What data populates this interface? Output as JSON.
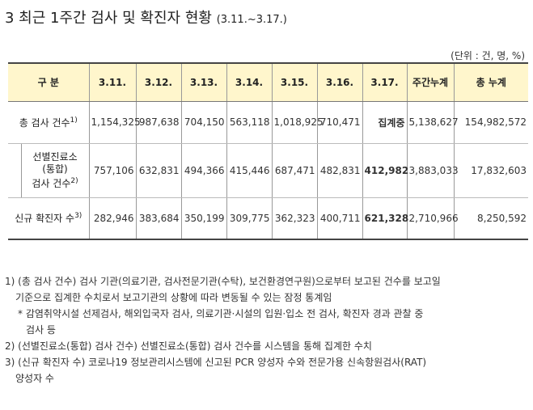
{
  "title": "3 최근 1주간 검사 및 확진자 현황",
  "title_sub": "(3.11.~3.17.)",
  "unit": "(단위 : 건, 명, %)",
  "table": {
    "headers": [
      "구 분",
      "3.11.",
      "3.12.",
      "3.13.",
      "3.14.",
      "3.15.",
      "3.16.",
      "3.17.",
      "주간누계",
      "총 누계"
    ],
    "rows": [
      {
        "label": "총 검사 건수",
        "sup": "1)",
        "cells": [
          "1,154,325",
          "987,638",
          "704,150",
          "563,118",
          "1,018,925",
          "710,471",
          "집계중",
          "5,138,627",
          "154,982,572"
        ]
      },
      {
        "label_lines": [
          "선별진료소",
          "(통합)",
          "검사 건수"
        ],
        "sup": "2)",
        "cells": [
          "757,106",
          "632,831",
          "494,366",
          "415,446",
          "687,471",
          "482,831",
          "412,982",
          "3,883,033",
          "17,832,603"
        ]
      },
      {
        "label": "신규 확진자 수",
        "sup": "3)",
        "cells": [
          "282,946",
          "383,684",
          "350,199",
          "309,775",
          "362,323",
          "400,711",
          "621,328",
          "2,710,966",
          "8,250,592"
        ]
      }
    ]
  },
  "notes": {
    "n1_a": "1) (총 검사 건수) 검사 기관(의료기관, 검사전문기관(수탁), 보건환경연구원)으로부터 보고된 건수를 보고일",
    "n1_b": "기준으로 집계한 수치로서 보고기관의 상황에 따라 변동될 수 있는 잠정 통계임",
    "n1_c": "* 감염취약시설 선제검사, 해외입국자 검사, 의료기관·시설의 입원·입소 전 검사, 확진자 경과 관찰 중",
    "n1_d": "검사 등",
    "n2": "2) (선별진료소(통합) 검사 건수) 선별진료소(통합) 검사 건수를 시스템을 통해 집계한 수치",
    "n3_a": "3) (신규 확진자 수) 코로나19 정보관리시스템에 신고된 PCR 양성자 수와 전문가용 신속항원검사(RAT)",
    "n3_b": "양성자 수"
  }
}
